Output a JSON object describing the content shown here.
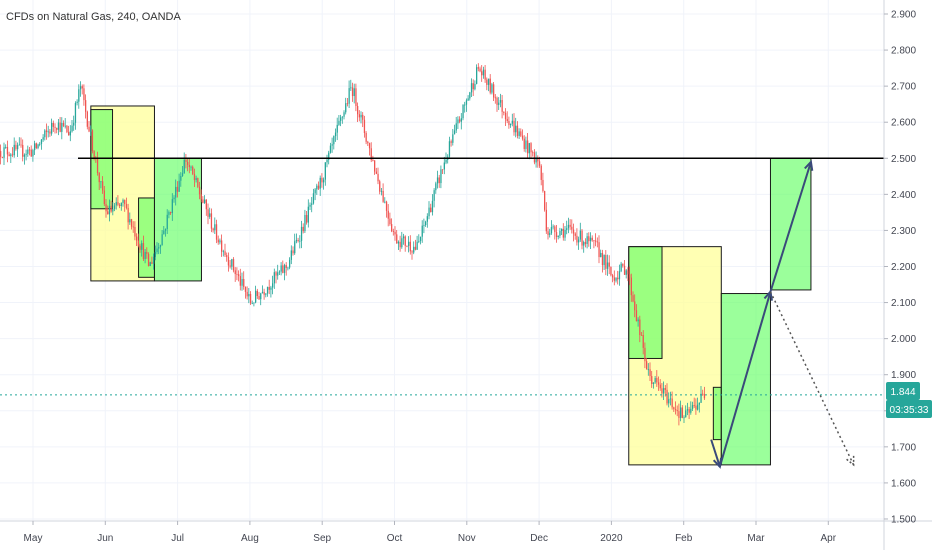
{
  "chart_data": {
    "type": "candlestick",
    "title": "CFDs on Natural Gas, 240, OANDA",
    "y_ticks": [
      "2.900",
      "2.800",
      "2.700",
      "2.600",
      "2.500",
      "2.400",
      "2.300",
      "2.200",
      "2.100",
      "2.000",
      "1.900",
      "1.800",
      "1.700",
      "1.600",
      "1.500"
    ],
    "ylim": [
      1.5,
      2.9
    ],
    "x_ticks": [
      "May",
      "Jun",
      "Jul",
      "Aug",
      "Sep",
      "Oct",
      "Nov",
      "Dec",
      "2020",
      "Feb",
      "Mar",
      "Apr"
    ],
    "grid": true,
    "current_price": "1.844",
    "countdown": "03:35:33",
    "horizontal_line": 2.5,
    "colors": {
      "up": "#26a69a",
      "down": "#ef5350",
      "line": "#000000",
      "price_line": "#26a69a",
      "badge": "#26a69a",
      "yellow_box": "#ffff99",
      "green_box": "#66ff66"
    },
    "price_path": [
      {
        "t": 0.0,
        "v": 2.52
      },
      {
        "t": 0.3,
        "v": 2.6
      },
      {
        "t": 0.5,
        "v": 2.57
      },
      {
        "t": 0.65,
        "v": 2.7
      },
      {
        "t": 0.85,
        "v": 2.5
      },
      {
        "t": 1.0,
        "v": 2.35
      },
      {
        "t": 1.25,
        "v": 2.37
      },
      {
        "t": 1.6,
        "v": 2.2
      },
      {
        "t": 1.8,
        "v": 2.3
      },
      {
        "t": 2.1,
        "v": 2.5
      },
      {
        "t": 2.5,
        "v": 2.3
      },
      {
        "t": 3.0,
        "v": 2.1
      },
      {
        "t": 3.5,
        "v": 2.2
      },
      {
        "t": 4.0,
        "v": 2.45
      },
      {
        "t": 4.4,
        "v": 2.7
      },
      {
        "t": 4.75,
        "v": 2.45
      },
      {
        "t": 5.0,
        "v": 2.28
      },
      {
        "t": 5.3,
        "v": 2.25
      },
      {
        "t": 5.7,
        "v": 2.5
      },
      {
        "t": 6.15,
        "v": 2.75
      },
      {
        "t": 6.6,
        "v": 2.6
      },
      {
        "t": 7.0,
        "v": 2.48
      },
      {
        "t": 7.1,
        "v": 2.3
      },
      {
        "t": 7.4,
        "v": 2.3
      },
      {
        "t": 7.8,
        "v": 2.25
      },
      {
        "t": 8.0,
        "v": 2.17
      },
      {
        "t": 8.2,
        "v": 2.2
      },
      {
        "t": 8.5,
        "v": 1.9
      },
      {
        "t": 9.0,
        "v": 1.78
      },
      {
        "t": 9.3,
        "v": 1.85
      }
    ],
    "zones": [
      {
        "kind": "yellow",
        "t1": 0.8,
        "t2": 1.68,
        "v1": 2.16,
        "v2": 2.645
      },
      {
        "kind": "green",
        "t1": 0.8,
        "t2": 1.1,
        "v1": 2.36,
        "v2": 2.635
      },
      {
        "kind": "green",
        "t1": 1.46,
        "t2": 1.68,
        "v1": 2.17,
        "v2": 2.39
      },
      {
        "kind": "green",
        "t1": 1.68,
        "t2": 2.33,
        "v1": 2.16,
        "v2": 2.5
      },
      {
        "kind": "yellow",
        "t1": 8.24,
        "t2": 9.52,
        "v1": 1.65,
        "v2": 2.255
      },
      {
        "kind": "green",
        "t1": 8.24,
        "t2": 8.7,
        "v1": 1.945,
        "v2": 2.255
      },
      {
        "kind": "green",
        "t1": 9.41,
        "t2": 9.52,
        "v1": 1.72,
        "v2": 1.865
      },
      {
        "kind": "green",
        "t1": 9.52,
        "t2": 10.2,
        "v1": 1.65,
        "v2": 2.125
      },
      {
        "kind": "green",
        "t1": 10.2,
        "t2": 10.76,
        "v1": 2.135,
        "v2": 2.5
      }
    ],
    "arrows": [
      {
        "style": "solid",
        "t1": 9.38,
        "v1": 1.72,
        "t2": 9.5,
        "v2": 1.645
      },
      {
        "style": "solid",
        "t1": 9.5,
        "v1": 1.645,
        "t2": 10.2,
        "v2": 2.13
      },
      {
        "style": "solid",
        "t1": 10.2,
        "v1": 2.13,
        "t2": 10.76,
        "v2": 2.49
      },
      {
        "style": "dotted",
        "t1": 10.2,
        "v1": 2.13,
        "t2": 11.35,
        "v2": 1.65
      }
    ]
  }
}
